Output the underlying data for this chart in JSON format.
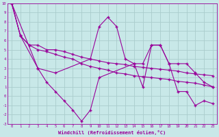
{
  "bg_color": "#c8e8e8",
  "line_color": "#990099",
  "grid_color": "#aacccc",
  "xlabel": "Windchill (Refroidissement éolien,°C)",
  "xlim": [
    -0.5,
    23.5
  ],
  "ylim": [
    -3,
    10
  ],
  "xticks": [
    0,
    1,
    2,
    3,
    4,
    5,
    6,
    7,
    8,
    9,
    10,
    11,
    12,
    13,
    14,
    15,
    16,
    17,
    18,
    19,
    20,
    21,
    22,
    23
  ],
  "yticks": [
    -3,
    -2,
    -1,
    0,
    1,
    2,
    3,
    4,
    5,
    6,
    7,
    8,
    9,
    10
  ],
  "series": [
    {
      "x": [
        0,
        1,
        2,
        3,
        4,
        5,
        6,
        7,
        8,
        9,
        10,
        11,
        12,
        13,
        14,
        15,
        16,
        17,
        18,
        19,
        20,
        21,
        22,
        23
      ],
      "y": [
        10,
        6.5,
        5.5,
        5.5,
        5.0,
        5.0,
        4.8,
        4.5,
        4.2,
        4.0,
        3.8,
        3.6,
        3.5,
        3.4,
        3.2,
        3.1,
        3.0,
        2.9,
        2.8,
        2.7,
        2.5,
        2.4,
        2.3,
        2.2
      ]
    },
    {
      "x": [
        0,
        1,
        2,
        3,
        4,
        5,
        6,
        7,
        8,
        9,
        10,
        11,
        12,
        13,
        14,
        15,
        16,
        17,
        18,
        19,
        20,
        21,
        22,
        23
      ],
      "y": [
        10,
        6.5,
        5.5,
        5.0,
        4.8,
        4.5,
        4.2,
        4.0,
        3.5,
        3.2,
        3.0,
        2.8,
        2.5,
        2.4,
        2.2,
        2.1,
        2.0,
        1.9,
        1.8,
        1.6,
        1.5,
        1.4,
        1.2,
        1.0
      ]
    },
    {
      "x": [
        0,
        1,
        3,
        5,
        9,
        10,
        11,
        12,
        13,
        14,
        15,
        16,
        17,
        18,
        19,
        20,
        21,
        22,
        23
      ],
      "y": [
        10,
        6.5,
        3.0,
        2.5,
        4.0,
        7.5,
        8.5,
        7.5,
        4.0,
        3.5,
        3.5,
        5.5,
        5.5,
        3.5,
        3.5,
        3.5,
        2.5,
        1.5,
        1.0
      ]
    },
    {
      "x": [
        0,
        3,
        4,
        5,
        6,
        7,
        8,
        9,
        10,
        14,
        15,
        16,
        17,
        18,
        19,
        20,
        21,
        22,
        23
      ],
      "y": [
        10,
        3.0,
        1.5,
        0.5,
        -0.5,
        -1.5,
        -2.7,
        -1.5,
        2.0,
        3.5,
        1.0,
        5.5,
        5.5,
        3.5,
        0.5,
        0.5,
        -1.0,
        -0.5,
        -0.8
      ]
    }
  ]
}
